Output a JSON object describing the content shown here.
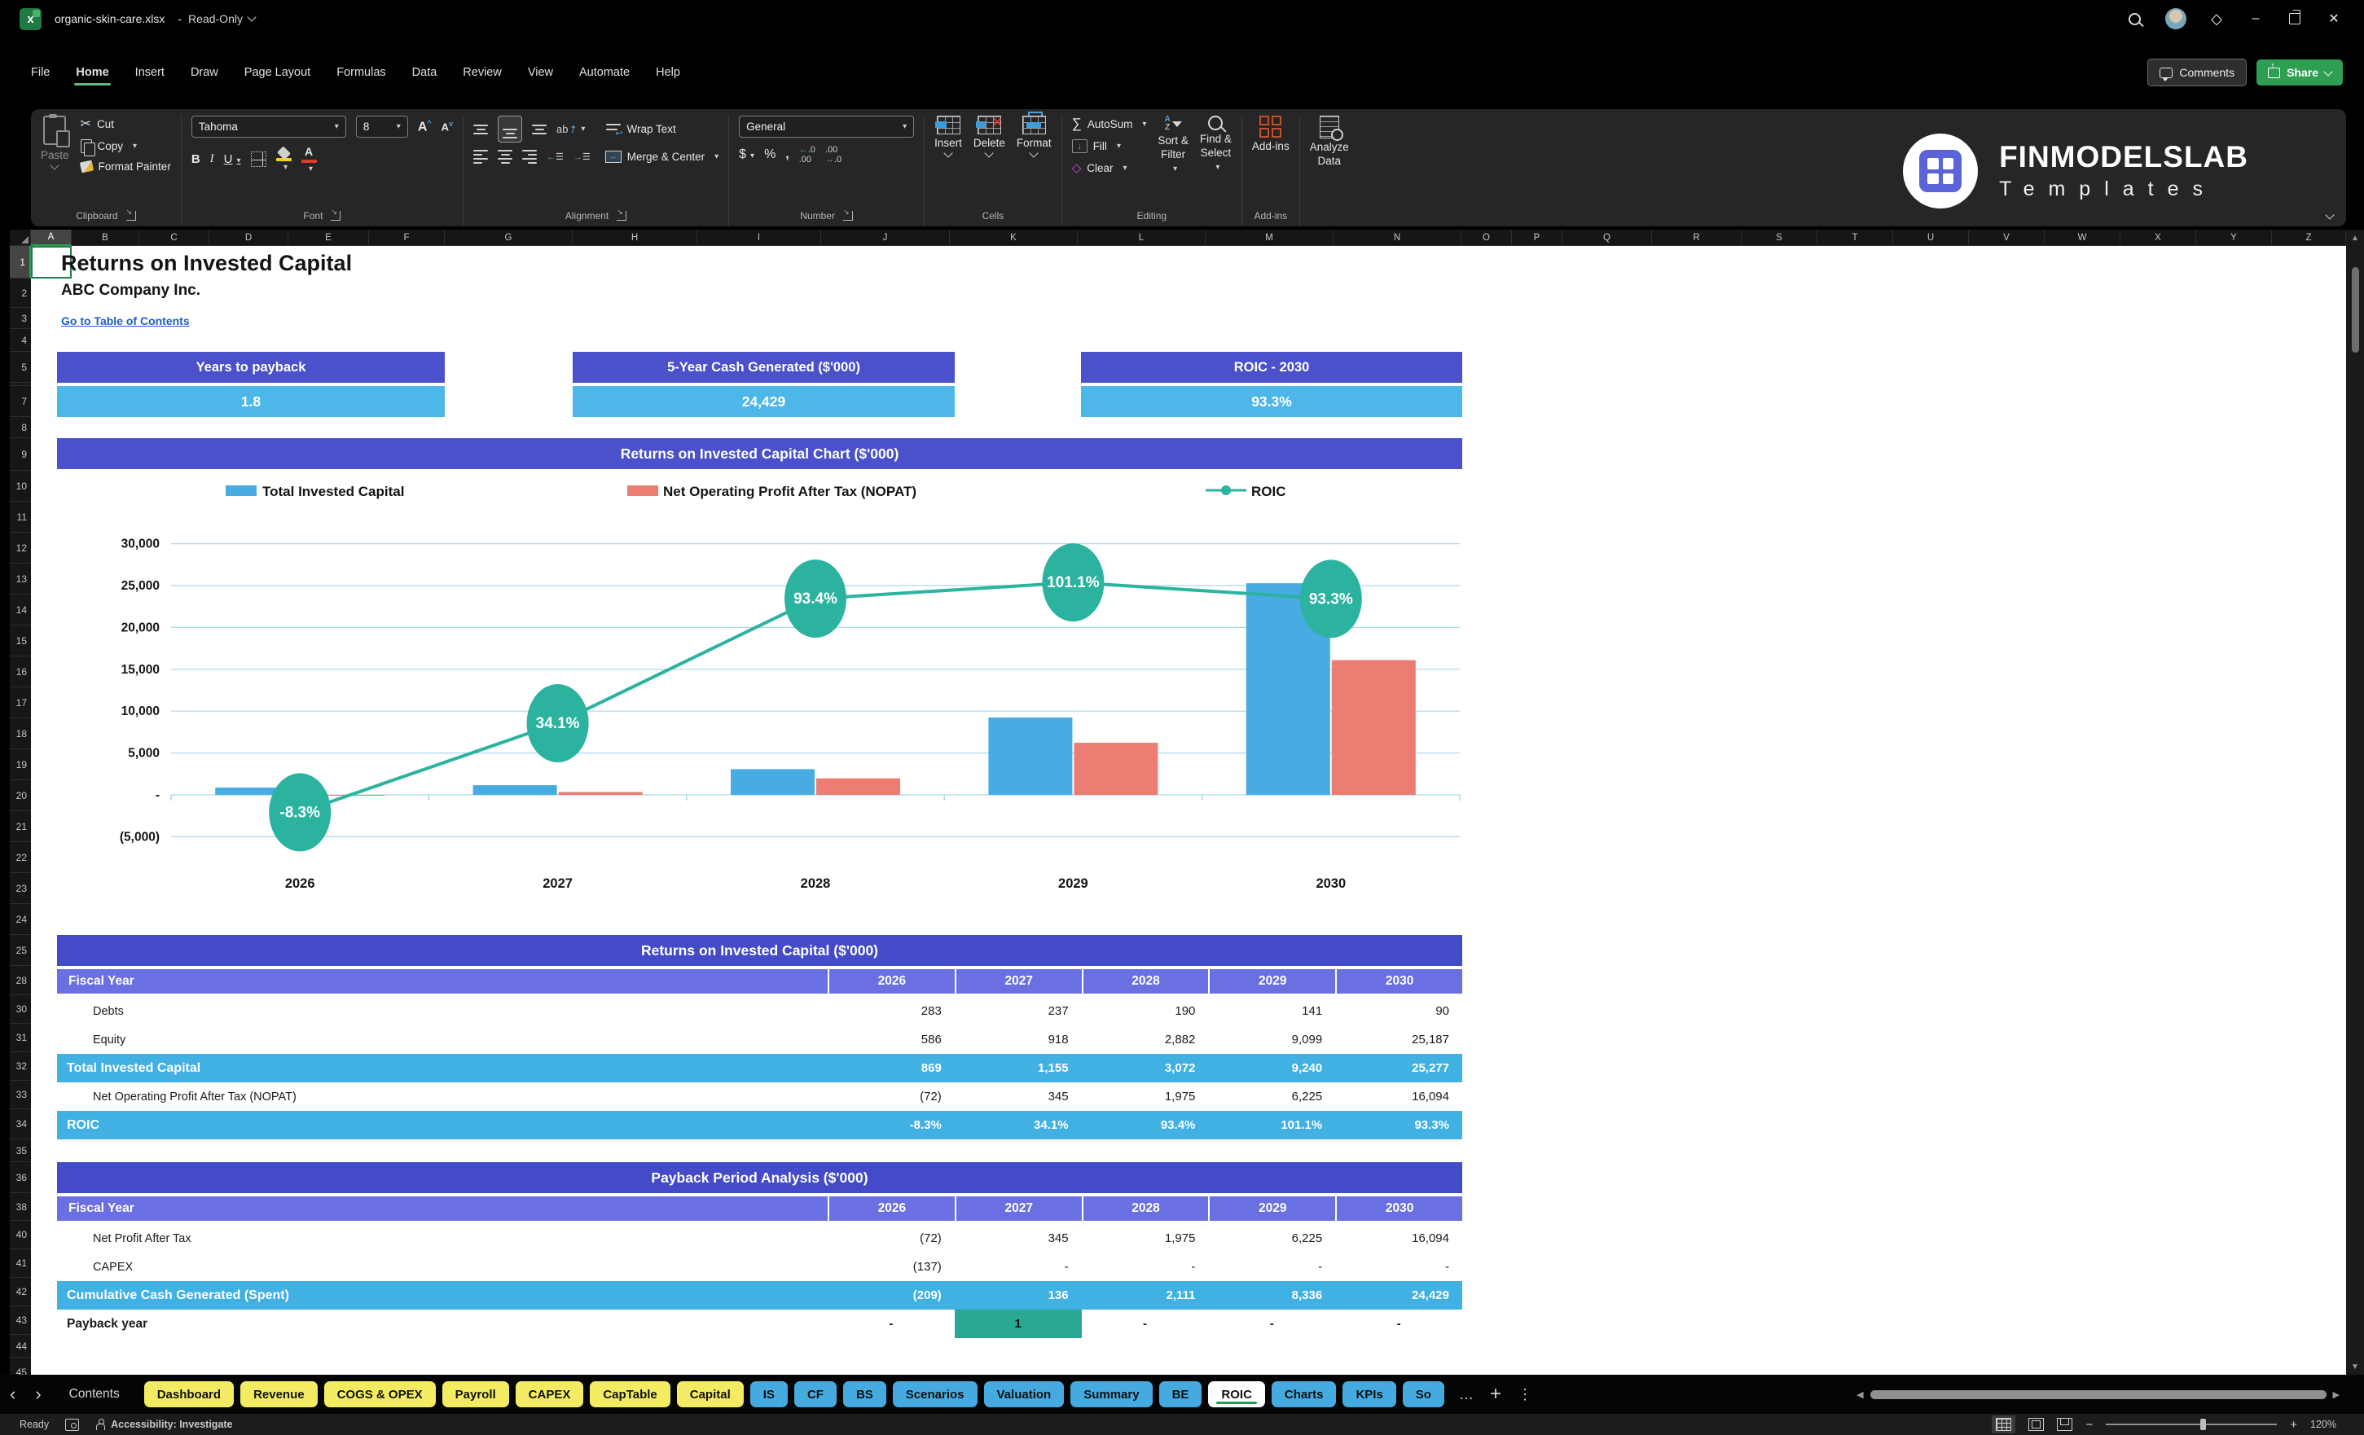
{
  "window": {
    "file_name": "organic-skin-care.xlsx",
    "separator": "-",
    "mode": "Read-Only"
  },
  "menu": {
    "items": [
      "File",
      "Home",
      "Insert",
      "Draw",
      "Page Layout",
      "Formulas",
      "Data",
      "Review",
      "View",
      "Automate",
      "Help"
    ],
    "active": "Home"
  },
  "topbar": {
    "comments": "Comments",
    "share": "Share"
  },
  "ribbon": {
    "paste": "Paste",
    "cut": "Cut",
    "copy": "Copy",
    "format_painter": "Format Painter",
    "clipboard_group": "Clipboard",
    "font_name": "Tahoma",
    "font_size": "8",
    "font_group": "Font",
    "wrap_text": "Wrap Text",
    "merge_center": "Merge & Center",
    "alignment_group": "Alignment",
    "number_format": "General",
    "number_group": "Number",
    "insert": "Insert",
    "delete": "Delete",
    "format": "Format",
    "cells_group": "Cells",
    "autosum": "AutoSum",
    "fill": "Fill",
    "clear": "Clear",
    "sort_filter": "Sort &\nFilter",
    "find_select": "Find &\nSelect",
    "editing_group": "Editing",
    "addins": "Add-ins",
    "addins_group": "Add-ins",
    "analyze": "Analyze\nData"
  },
  "brand": {
    "name": "FINMODELSLAB",
    "subtitle": "Templates"
  },
  "grid": {
    "columns": [
      [
        "A",
        50
      ],
      [
        "B",
        83
      ],
      [
        "C",
        86
      ],
      [
        "D",
        97
      ],
      [
        "E",
        99
      ],
      [
        "F",
        93
      ],
      [
        "G",
        157
      ],
      [
        "H",
        153
      ],
      [
        "I",
        152
      ],
      [
        "J",
        158
      ],
      [
        "K",
        157
      ],
      [
        "L",
        157
      ],
      [
        "M",
        157
      ],
      [
        "N",
        157
      ],
      [
        "O",
        62
      ],
      [
        "P",
        62
      ],
      [
        "Q",
        110
      ],
      [
        "R",
        110
      ],
      [
        "S",
        93
      ],
      [
        "T",
        93
      ],
      [
        "U",
        93
      ],
      [
        "V",
        93
      ],
      [
        "W",
        93
      ],
      [
        "X",
        93
      ],
      [
        "Y",
        93
      ],
      [
        "Z",
        91
      ]
    ],
    "rows": [
      [
        "1",
        40
      ],
      [
        "2",
        36
      ],
      [
        "3",
        26
      ],
      [
        "4",
        28
      ],
      [
        "5",
        38
      ],
      [
        "",
        4
      ],
      [
        "7",
        38
      ],
      [
        "8",
        26
      ],
      [
        "9",
        40
      ],
      [
        "10",
        38
      ],
      [
        "11",
        38
      ],
      [
        "12",
        38
      ],
      [
        "13",
        38
      ],
      [
        "14",
        38
      ],
      [
        "15",
        38
      ],
      [
        "16",
        38
      ],
      [
        "17",
        38
      ],
      [
        "18",
        38
      ],
      [
        "19",
        38
      ],
      [
        "20",
        38
      ],
      [
        "21",
        38
      ],
      [
        "22",
        38
      ],
      [
        "23",
        38
      ],
      [
        "24",
        38
      ],
      [
        "25",
        38
      ],
      [
        "28",
        36
      ],
      [
        "30",
        35
      ],
      [
        "31",
        35
      ],
      [
        "32",
        35
      ],
      [
        "33",
        35
      ],
      [
        "34",
        37
      ],
      [
        "35",
        28
      ],
      [
        "36",
        38
      ],
      [
        "38",
        34
      ],
      [
        "40",
        35
      ],
      [
        "41",
        35
      ],
      [
        "42",
        35
      ],
      [
        "43",
        35
      ],
      [
        "44",
        28
      ],
      [
        "45",
        36
      ]
    ],
    "selected_column": "A",
    "selected_row": "1"
  },
  "sheet": {
    "title": "Returns on Invested Capital",
    "company": "ABC Company Inc.",
    "link": "Go to Table of Contents",
    "kpis": [
      {
        "label": "Years to payback",
        "value": "1.8"
      },
      {
        "label": "5-Year Cash Generated ($'000)",
        "value": "24,429"
      },
      {
        "label": "ROIC - 2030",
        "value": "93.3%"
      }
    ]
  },
  "chart_data": {
    "type": "combo",
    "title": "Returns on Invested Capital Chart ($'000)",
    "categories": [
      "2026",
      "2027",
      "2028",
      "2029",
      "2030"
    ],
    "bar_series": [
      {
        "name": "Total Invested Capital",
        "color": "#47ace1",
        "values": [
          869,
          1155,
          3072,
          9240,
          25277
        ]
      },
      {
        "name": "Net Operating Profit After Tax (NOPAT)",
        "color": "#ed7d72",
        "values": [
          -72,
          345,
          1975,
          6225,
          16094
        ]
      }
    ],
    "line_series": {
      "name": "ROIC",
      "color": "#2bb3a0",
      "values_pct": [
        -8.3,
        34.1,
        93.4,
        101.1,
        93.3
      ],
      "labels": [
        "-8.3%",
        "34.1%",
        "93.4%",
        "101.1%",
        "93.3%"
      ]
    },
    "y_axis": {
      "ticks": [
        "30,000",
        "25,000",
        "20,000",
        "15,000",
        "10,000",
        "5,000",
        "-",
        "(5,000)"
      ],
      "tick_values": [
        30000,
        25000,
        20000,
        15000,
        10000,
        5000,
        0,
        -5000
      ],
      "min": -5000,
      "max": 30000
    },
    "legend_position": "top",
    "grid": true,
    "gridline_color": "#a9d9e9"
  },
  "tables": [
    {
      "title": "Returns on Invested Capital ($'000)",
      "header_label": "Fiscal Year",
      "years": [
        "2026",
        "2027",
        "2028",
        "2029",
        "2030"
      ],
      "rows": [
        {
          "label": "Debts",
          "style": "plain",
          "values": [
            "283",
            "237",
            "190",
            "141",
            "90"
          ]
        },
        {
          "label": "Equity",
          "style": "plain",
          "values": [
            "586",
            "918",
            "2,882",
            "9,099",
            "25,187"
          ]
        },
        {
          "label": "Total Invested Capital",
          "style": "highlight",
          "values": [
            "869",
            "1,155",
            "3,072",
            "9,240",
            "25,277"
          ]
        },
        {
          "label": "Net Operating Profit After Tax (NOPAT)",
          "style": "plain",
          "values": [
            "(72)",
            "345",
            "1,975",
            "6,225",
            "16,094"
          ]
        },
        {
          "label": "ROIC",
          "style": "highlight",
          "values": [
            "-8.3%",
            "34.1%",
            "93.4%",
            "101.1%",
            "93.3%"
          ]
        }
      ]
    },
    {
      "title": "Payback Period Analysis ($'000)",
      "header_label": "Fiscal Year",
      "years": [
        "2026",
        "2027",
        "2028",
        "2029",
        "2030"
      ],
      "rows": [
        {
          "label": "Net Profit After Tax",
          "style": "plain",
          "values": [
            "(72)",
            "345",
            "1,975",
            "6,225",
            "16,094"
          ]
        },
        {
          "label": "CAPEX",
          "style": "plain",
          "values": [
            "(137)",
            "-",
            "-",
            "-",
            "-"
          ]
        },
        {
          "label": "Cumulative Cash Generated (Spent)",
          "style": "highlight",
          "values": [
            "(209)",
            "136",
            "2,111",
            "8,336",
            "24,429"
          ]
        },
        {
          "label": "Payback year",
          "style": "payback",
          "values": [
            "-",
            "1",
            "-",
            "-",
            "-"
          ],
          "highlight_cell": 1,
          "highlight_color": "#2ba795"
        }
      ]
    }
  ],
  "tabbar": {
    "tabs": [
      {
        "label": "Contents",
        "type": "plain"
      },
      {
        "label": "Dashboard",
        "type": "yellow"
      },
      {
        "label": "Revenue",
        "type": "yellow"
      },
      {
        "label": "COGS & OPEX",
        "type": "yellow"
      },
      {
        "label": "Payroll",
        "type": "yellow"
      },
      {
        "label": "CAPEX",
        "type": "yellow"
      },
      {
        "label": "CapTable",
        "type": "yellow"
      },
      {
        "label": "Capital",
        "type": "yellow"
      },
      {
        "label": "IS",
        "type": "blue"
      },
      {
        "label": "CF",
        "type": "blue"
      },
      {
        "label": "BS",
        "type": "blue"
      },
      {
        "label": "Scenarios",
        "type": "blue"
      },
      {
        "label": "Valuation",
        "type": "blue"
      },
      {
        "label": "Summary",
        "type": "blue"
      },
      {
        "label": "BE",
        "type": "blue"
      },
      {
        "label": "ROIC",
        "type": "active"
      },
      {
        "label": "Charts",
        "type": "blue"
      },
      {
        "label": "KPIs",
        "type": "blue"
      },
      {
        "label": "So",
        "type": "blue"
      }
    ],
    "more": "…",
    "add": "+",
    "menu": "⋮"
  },
  "status": {
    "ready": "Ready",
    "accessibility": "Accessibility: Investigate",
    "zoom_level": "120%"
  },
  "colors": {
    "header_indigo": "#444bc8",
    "kpi_header": "#4a51cb",
    "fiscal_row": "#6a6fe2",
    "highlight_blue": "#41b0e3",
    "kpi_value": "#4db7e9",
    "bar_blue": "#47ace1",
    "bar_red": "#ed7d72",
    "roic_teal": "#2bb3a0",
    "payback_teal": "#2ba795",
    "tab_yellow": "#f3ec63",
    "tab_blue": "#45aadf",
    "share_green": "#2d9e52",
    "link_blue": "#1f5bd8",
    "accent_green": "#2f9e53"
  }
}
